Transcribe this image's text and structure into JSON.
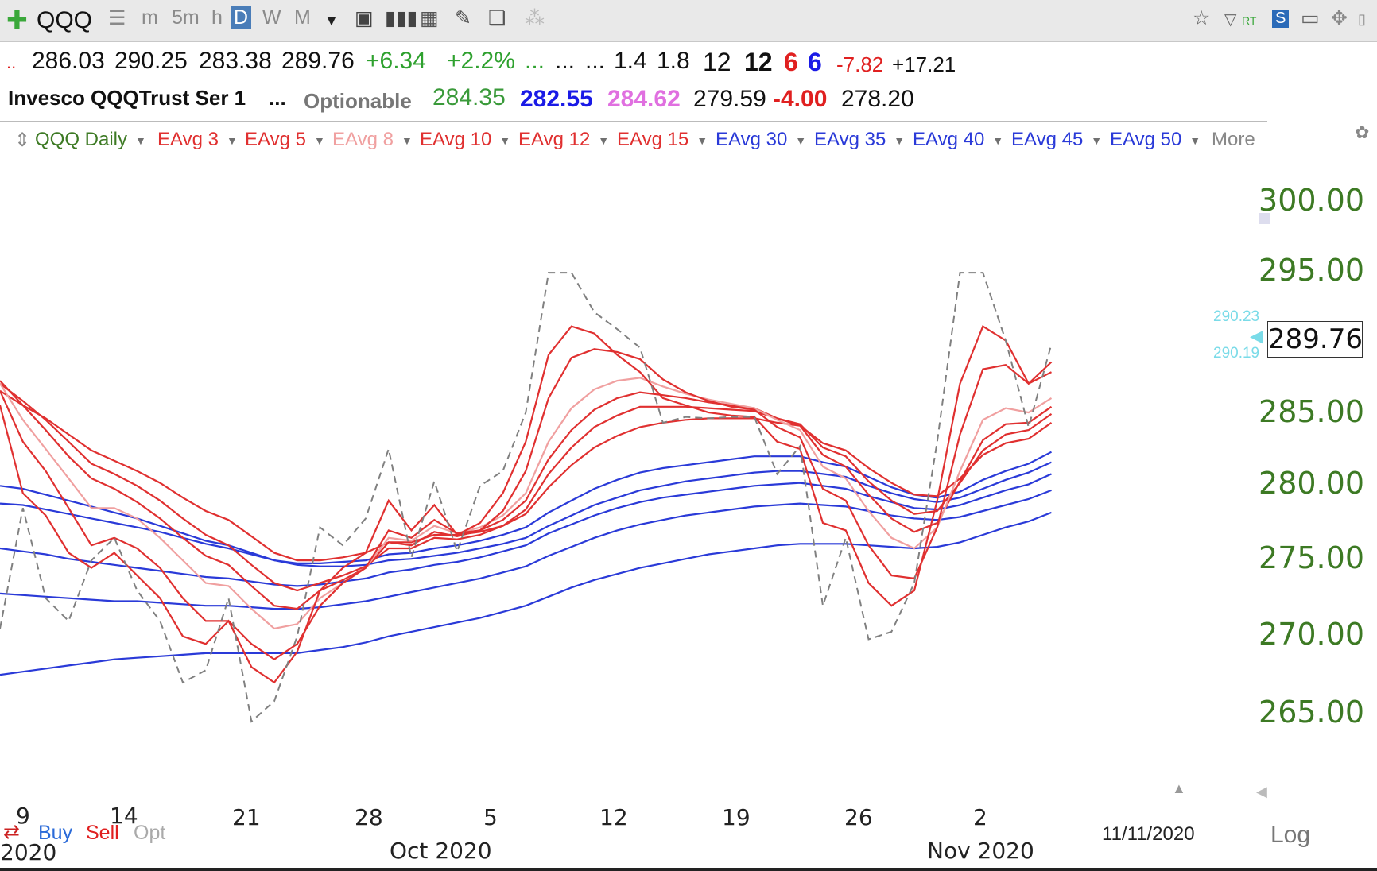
{
  "toolbar": {
    "symbol": "QQQ",
    "periods": [
      "m",
      "5m",
      "h",
      "D",
      "W",
      "M"
    ],
    "active_period": "D"
  },
  "quote_line1": {
    "open": "286.03",
    "high": "290.25",
    "low": "283.38",
    "close": "289.76",
    "change": "+6.34",
    "change_pct": "+2.2%",
    "dots": [
      "...",
      "...",
      "..."
    ],
    "v1": "1.4",
    "v2": "1.8",
    "v3": "12",
    "v4": "12",
    "v5": "6",
    "v6": "6",
    "v7": "-7.82",
    "v8": "+17.21",
    "colors": {
      "green": "#2fa12f",
      "red": "#e02020",
      "blue": "#1a1ae6",
      "pink": "#e070e0"
    }
  },
  "quote_line2": {
    "name": "Invesco QQQTrust Ser 1",
    "dots": "...",
    "optionable": "Optionable",
    "p1": "284.35",
    "p2": "282.55",
    "p3": "284.62",
    "p4": "279.59",
    "p5": "-4.00",
    "p6": "278.20"
  },
  "legend": {
    "symbol_label": "QQQ Daily",
    "items": [
      {
        "label": "EAvg 3",
        "color": "#e03030"
      },
      {
        "label": "EAvg 5",
        "color": "#e03030"
      },
      {
        "label": "EAvg 8",
        "color": "#f0a0a0"
      },
      {
        "label": "EAvg 10",
        "color": "#e03030"
      },
      {
        "label": "EAvg 12",
        "color": "#e03030"
      },
      {
        "label": "EAvg 15",
        "color": "#e03030"
      },
      {
        "label": "EAvg 30",
        "color": "#2a3ad8"
      },
      {
        "label": "EAvg 35",
        "color": "#2a3ad8"
      },
      {
        "label": "EAvg 40",
        "color": "#2a3ad8"
      },
      {
        "label": "EAvg 45",
        "color": "#2a3ad8"
      },
      {
        "label": "EAvg 50",
        "color": "#2a3ad8"
      }
    ],
    "more": "More"
  },
  "right_panel": {
    "last_price": "289.76",
    "ask": "290.23",
    "bid": "290.19",
    "scale_mode": "Log"
  },
  "bottom": {
    "buy": "Buy",
    "sell": "Sell",
    "opt": "Opt",
    "date": "11/11/2020",
    "year_fragment": "2020",
    "months": [
      "Oct 2020",
      "Nov 2020"
    ]
  },
  "chart_data": {
    "type": "line",
    "title": "",
    "xlabel": "",
    "ylabel": "",
    "ylim": [
      260,
      303
    ],
    "log_scale": true,
    "y_ticks": [
      300,
      295,
      285,
      280,
      275,
      270,
      265
    ],
    "x_tick_labels": [
      "9",
      "14",
      "21",
      "28",
      "5",
      "12",
      "19",
      "26",
      "2"
    ],
    "x": [
      "9/08",
      "9/09",
      "9/10",
      "9/11",
      "9/14",
      "9/15",
      "9/16",
      "9/17",
      "9/18",
      "9/21",
      "9/22",
      "9/23",
      "9/24",
      "9/25",
      "9/28",
      "9/29",
      "9/30",
      "10/01",
      "10/02",
      "10/05",
      "10/06",
      "10/07",
      "10/08",
      "10/09",
      "10/12",
      "10/13",
      "10/14",
      "10/15",
      "10/16",
      "10/19",
      "10/20",
      "10/21",
      "10/22",
      "10/23",
      "10/26",
      "10/27",
      "10/28",
      "10/29",
      "10/30",
      "11/02",
      "11/03",
      "11/04",
      "11/05",
      "11/06",
      "11/09",
      "11/10",
      "11/11"
    ],
    "series": [
      {
        "name": "QQQ Daily",
        "color": "#808080",
        "dashed": true,
        "values": [
          270.5,
          278.5,
          272.5,
          271.0,
          275.0,
          276.5,
          273.0,
          271.0,
          267.0,
          267.8,
          272.5,
          264.5,
          265.8,
          270.0,
          277.2,
          276.0,
          277.8,
          282.5,
          275.2,
          280.3,
          275.6,
          280.0,
          281.0,
          285.0,
          294.8,
          294.8,
          292.0,
          290.8,
          289.5,
          284.3,
          284.7,
          284.6,
          284.7,
          284.7,
          280.8,
          282.7,
          272.0,
          276.5,
          269.8,
          270.3,
          273.5,
          283.0,
          294.8,
          294.8,
          290.0,
          284.0,
          289.76
        ]
      },
      {
        "name": "EAvg 3",
        "color": "#e03030",
        "values": [
          285.5,
          279.5,
          278.0,
          275.5,
          274.5,
          275.5,
          274.0,
          272.5,
          270.0,
          269.5,
          271.0,
          268.0,
          267.0,
          269.0,
          273.0,
          274.5,
          275.5,
          279.0,
          277.0,
          278.7,
          276.7,
          277.5,
          279.5,
          283.0,
          289.0,
          291.0,
          290.5,
          289.0,
          287.8,
          286.0,
          285.5,
          285.0,
          284.8,
          284.7,
          283.0,
          282.5,
          277.5,
          277.0,
          273.5,
          272.0,
          273.0,
          279.0,
          287.0,
          291.0,
          290.0,
          287.0,
          288.5
        ]
      },
      {
        "name": "EAvg 5",
        "color": "#e03030",
        "values": [
          286.5,
          283.0,
          281.0,
          278.5,
          276.0,
          276.5,
          275.8,
          274.5,
          272.5,
          271.0,
          271.0,
          269.5,
          268.5,
          269.5,
          272.0,
          273.5,
          274.5,
          277.0,
          276.5,
          277.7,
          276.8,
          277.0,
          278.3,
          281.0,
          286.0,
          288.8,
          289.4,
          289.2,
          288.7,
          287.3,
          286.4,
          285.8,
          285.4,
          285.2,
          284.0,
          283.3,
          279.8,
          279.0,
          276.0,
          274.0,
          273.8,
          277.2,
          283.5,
          288.0,
          288.3,
          287.0,
          287.8
        ]
      },
      {
        "name": "EAvg 8",
        "color": "#f0a0a0",
        "values": [
          287.0,
          284.5,
          282.5,
          280.5,
          278.5,
          278.5,
          277.8,
          276.5,
          275.0,
          273.5,
          273.3,
          271.8,
          270.5,
          270.8,
          272.5,
          273.5,
          274.5,
          276.5,
          276.3,
          277.3,
          276.8,
          277.2,
          278.0,
          279.5,
          283.0,
          285.3,
          286.6,
          287.2,
          287.4,
          286.8,
          286.3,
          285.9,
          285.6,
          285.3,
          284.5,
          283.8,
          281.3,
          280.5,
          278.3,
          276.5,
          275.8,
          277.2,
          281.0,
          284.5,
          285.3,
          285.0,
          286.0
        ]
      },
      {
        "name": "EAvg 10",
        "color": "#e03030",
        "values": [
          287.2,
          285.5,
          283.8,
          282.0,
          280.5,
          279.8,
          278.9,
          277.8,
          276.5,
          275.3,
          274.7,
          273.3,
          272.0,
          271.8,
          273.0,
          273.7,
          274.5,
          276.2,
          276.0,
          276.9,
          276.6,
          277.0,
          277.7,
          279.0,
          281.8,
          283.8,
          285.2,
          286.0,
          286.4,
          286.2,
          286.0,
          285.7,
          285.5,
          285.3,
          284.6,
          284.1,
          282.1,
          281.3,
          279.4,
          277.8,
          276.9,
          277.5,
          280.3,
          283.1,
          284.2,
          284.3,
          285.4
        ]
      },
      {
        "name": "EAvg 12",
        "color": "#e03030",
        "values": [
          287.0,
          285.8,
          284.5,
          283.0,
          281.5,
          280.8,
          280.0,
          279.0,
          277.8,
          276.7,
          276.0,
          274.7,
          273.5,
          273.0,
          273.5,
          274.0,
          274.6,
          275.8,
          275.8,
          276.5,
          276.4,
          276.7,
          277.3,
          278.4,
          280.8,
          282.6,
          284.0,
          284.8,
          285.4,
          285.4,
          285.4,
          285.3,
          285.2,
          285.1,
          284.6,
          284.2,
          282.6,
          282.0,
          280.3,
          279.0,
          278.1,
          278.3,
          280.2,
          282.4,
          283.5,
          283.8,
          284.9
        ]
      },
      {
        "name": "EAvg 15",
        "color": "#e03030",
        "values": [
          286.5,
          285.5,
          284.6,
          283.5,
          282.4,
          281.7,
          281.0,
          280.2,
          279.2,
          278.3,
          277.7,
          276.6,
          275.5,
          275.0,
          275.0,
          275.2,
          275.5,
          276.2,
          276.2,
          276.7,
          276.7,
          276.9,
          277.3,
          278.1,
          279.9,
          281.4,
          282.6,
          283.4,
          284.0,
          284.3,
          284.5,
          284.6,
          284.6,
          284.6,
          284.3,
          284.1,
          282.9,
          282.4,
          281.2,
          280.2,
          279.4,
          279.3,
          280.5,
          282.1,
          282.9,
          283.2,
          284.3
        ]
      },
      {
        "name": "EAvg 30",
        "color": "#2a3ad8",
        "values": [
          280.0,
          279.8,
          279.4,
          279.0,
          278.6,
          278.2,
          277.8,
          277.3,
          276.8,
          276.3,
          276.0,
          275.5,
          275.0,
          274.8,
          274.8,
          274.9,
          275.0,
          275.4,
          275.5,
          275.8,
          276.0,
          276.3,
          276.7,
          277.2,
          278.2,
          279.0,
          279.8,
          280.4,
          280.9,
          281.2,
          281.4,
          281.6,
          281.8,
          282.0,
          282.0,
          282.0,
          281.6,
          281.3,
          280.6,
          279.9,
          279.4,
          279.2,
          279.6,
          280.4,
          281.0,
          281.5,
          282.3
        ]
      },
      {
        "name": "EAvg 35",
        "color": "#2a3ad8",
        "values": [
          278.8,
          278.7,
          278.4,
          278.1,
          277.8,
          277.5,
          277.2,
          276.9,
          276.5,
          276.1,
          275.8,
          275.4,
          275.0,
          274.7,
          274.6,
          274.6,
          274.7,
          275.0,
          275.1,
          275.3,
          275.5,
          275.8,
          276.1,
          276.5,
          277.3,
          278.0,
          278.7,
          279.2,
          279.7,
          280.0,
          280.3,
          280.5,
          280.7,
          280.9,
          281.0,
          281.0,
          280.8,
          280.6,
          280.0,
          279.5,
          279.1,
          278.9,
          279.2,
          279.8,
          280.4,
          280.9,
          281.6
        ]
      },
      {
        "name": "EAvg 40",
        "color": "#2a3ad8",
        "values": [
          275.8,
          275.6,
          275.4,
          275.1,
          274.9,
          274.7,
          274.5,
          274.3,
          274.1,
          273.9,
          273.8,
          273.6,
          273.4,
          273.3,
          273.4,
          273.6,
          273.8,
          274.2,
          274.4,
          274.7,
          274.9,
          275.2,
          275.6,
          276.0,
          276.8,
          277.4,
          278.0,
          278.5,
          278.9,
          279.2,
          279.4,
          279.6,
          279.8,
          280.0,
          280.1,
          280.2,
          280.0,
          279.8,
          279.3,
          278.9,
          278.5,
          278.4,
          278.7,
          279.2,
          279.7,
          280.1,
          280.8
        ]
      },
      {
        "name": "EAvg 45",
        "color": "#2a3ad8",
        "values": [
          272.8,
          272.7,
          272.6,
          272.5,
          272.4,
          272.3,
          272.3,
          272.2,
          272.1,
          272.0,
          272.0,
          271.9,
          271.8,
          271.8,
          271.9,
          272.1,
          272.3,
          272.6,
          272.9,
          273.2,
          273.5,
          273.8,
          274.2,
          274.6,
          275.3,
          275.9,
          276.5,
          277.0,
          277.4,
          277.7,
          278.0,
          278.2,
          278.4,
          278.6,
          278.7,
          278.8,
          278.7,
          278.6,
          278.3,
          278.0,
          277.8,
          277.7,
          277.9,
          278.3,
          278.7,
          279.1,
          279.7
        ]
      },
      {
        "name": "EAvg 50",
        "color": "#2a3ad8",
        "values": [
          267.5,
          267.7,
          267.9,
          268.1,
          268.3,
          268.5,
          268.6,
          268.7,
          268.8,
          268.9,
          268.9,
          268.9,
          268.9,
          268.9,
          269.1,
          269.3,
          269.6,
          270.0,
          270.3,
          270.6,
          270.9,
          271.2,
          271.6,
          272.0,
          272.6,
          273.2,
          273.7,
          274.1,
          274.5,
          274.8,
          275.1,
          275.4,
          275.6,
          275.8,
          276.0,
          276.1,
          276.1,
          276.1,
          276.0,
          275.9,
          275.8,
          275.9,
          276.2,
          276.7,
          277.2,
          277.6,
          278.2
        ]
      }
    ]
  }
}
